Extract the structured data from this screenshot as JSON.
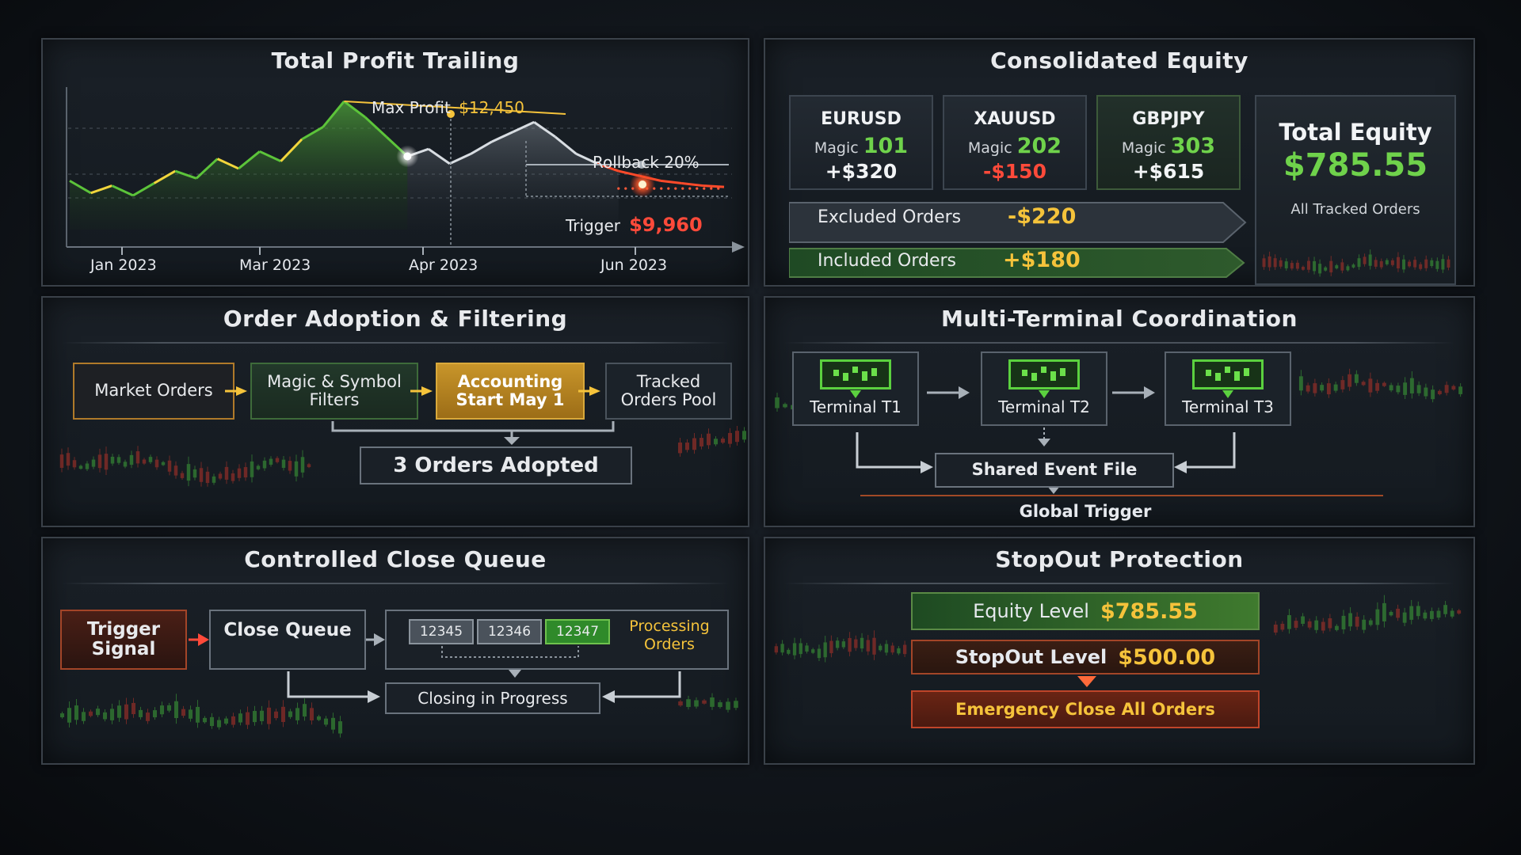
{
  "panels": {
    "profit_trailing": {
      "title": "Total Profit Trailing",
      "max_profit_label": "Max Profit",
      "max_profit_value": "$12,450",
      "rollback_label": "Rollback 20%",
      "trigger_label": "Trigger",
      "trigger_value": "$9,960",
      "x_ticks": [
        "Jan 2023",
        "Mar 2023",
        "Apr 2023",
        "Jun 2023"
      ]
    },
    "consolidated_equity": {
      "title": "Consolidated Equity",
      "symbols": [
        {
          "name": "EURUSD",
          "magic_label": "Magic",
          "magic": "101",
          "pnl": "+$320"
        },
        {
          "name": "XAUUSD",
          "magic_label": "Magic",
          "magic": "202",
          "pnl": "-$150"
        },
        {
          "name": "GBPJPY",
          "magic_label": "Magic",
          "magic": "303",
          "pnl": "+$615"
        }
      ],
      "excluded_label": "Excluded Orders",
      "excluded_value": "-$220",
      "included_label": "Included Orders",
      "included_value": "+$180",
      "total_label": "Total Equity",
      "total_value": "$785.55",
      "total_caption": "All Tracked Orders"
    },
    "order_adoption": {
      "title": "Order Adoption & Filtering",
      "steps": [
        "Market Orders",
        "Magic & Symbol Filters",
        "Accounting Start May 1",
        "Tracked Orders Pool"
      ],
      "result": "3 Orders Adopted"
    },
    "multi_terminal": {
      "title": "Multi-Terminal Coordination",
      "terminals": [
        "Terminal T1",
        "Terminal T2",
        "Terminal T3"
      ],
      "shared_file": "Shared Event File",
      "global_trigger": "Global Trigger"
    },
    "close_queue": {
      "title": "Controlled Close Queue",
      "trigger_signal": "Trigger Signal",
      "close_queue": "Close Queue",
      "tickets": [
        "12345",
        "12346",
        "12347"
      ],
      "processing": "Processing Orders",
      "closing": "Closing in Progress"
    },
    "stopout": {
      "title": "StopOut Protection",
      "equity_label": "Equity Level",
      "equity_value": "$785.55",
      "stopout_label": "StopOut Level",
      "stopout_value": "$500.00",
      "emergency": "Emergency Close All Orders"
    }
  },
  "colors": {
    "profit_green": "#6fd24b",
    "gold": "#f5c33b",
    "loss_red": "#ff4a3a",
    "panel_border": "#3a4149"
  },
  "chart_data": {
    "type": "line",
    "x_ticks": [
      "Jan 2023",
      "Mar 2023",
      "Apr 2023",
      "Jun 2023"
    ],
    "series": [
      {
        "values": [
          9200,
          8700,
          9000,
          8600,
          9100,
          9600,
          9300,
          10100,
          9700,
          10400,
          10000,
          10900,
          11400,
          12450,
          11800,
          11000,
          10200,
          10500,
          9900,
          10300,
          10800,
          11200,
          11600,
          11000,
          10300,
          9900,
          9600,
          9400,
          9200,
          9100,
          9000,
          8950
        ]
      }
    ],
    "annotations": [
      {
        "label": "Max Profit",
        "value": 12450
      },
      {
        "label": "Rollback 20%"
      },
      {
        "label": "Trigger",
        "value": 9960
      }
    ]
  }
}
